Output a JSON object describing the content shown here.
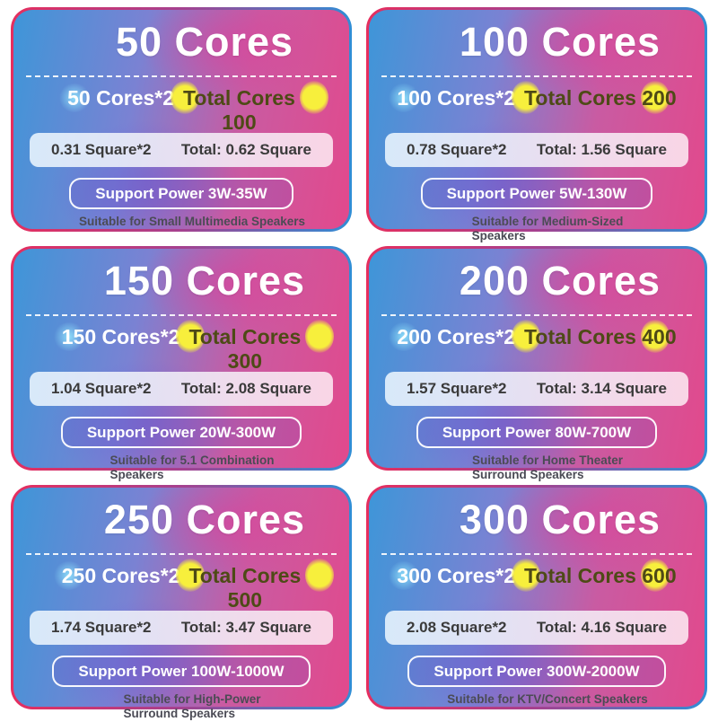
{
  "colors": {
    "page_background": "#ffffff",
    "card_gradient_left": "#3e96d8",
    "card_gradient_right": "#e2498c",
    "border_gradient_left": "#e62e5e",
    "border_gradient_right": "#2f8ed6",
    "highlight_yellow": "#f7ef3c",
    "sparkle_cyan": "#96ebff",
    "title_text": "#ffffff",
    "total_cores_text": "#4e4a16",
    "spec_bar_text": "#3a3a3a",
    "suitable_text": "#4b4b55"
  },
  "cards": [
    {
      "title": "50 Cores",
      "cores_label": "50 Cores*2",
      "total_cores": "Total Cores\n100",
      "square_label": "0.31 Square*2",
      "total_square": "Total: 0.62 Square",
      "support_power": "Support Power 3W-35W",
      "suitable": "Suitable for Small Multimedia Speakers"
    },
    {
      "title": "100 Cores",
      "cores_label": "100 Cores*2",
      "total_cores": "Total Cores 200",
      "square_label": "0.78 Square*2",
      "total_square": "Total: 1.56 Square",
      "support_power": "Support Power 5W-130W",
      "suitable": "Suitable for Medium-Sized\nSpeakers"
    },
    {
      "title": "150 Cores",
      "cores_label": "150 Cores*2",
      "total_cores": "Total Cores\n300",
      "square_label": "1.04 Square*2",
      "total_square": "Total: 2.08 Square",
      "support_power": "Support Power 20W-300W",
      "suitable": "Suitable for 5.1 Combination\nSpeakers"
    },
    {
      "title": "200 Cores",
      "cores_label": "200 Cores*2",
      "total_cores": "Total Cores 400",
      "square_label": "1.57 Square*2",
      "total_square": "Total: 3.14 Square",
      "support_power": "Support Power 80W-700W",
      "suitable": "Suitable for Home Theater\nSurround Speakers"
    },
    {
      "title": "250 Cores",
      "cores_label": "250 Cores*2",
      "total_cores": "Total Cores\n500",
      "square_label": "1.74 Square*2",
      "total_square": "Total: 3.47 Square",
      "support_power": "Support Power 100W-1000W",
      "suitable": "Suitable for High-Power\nSurround Speakers"
    },
    {
      "title": "300 Cores",
      "cores_label": "300 Cores*2",
      "total_cores": "Total Cores 600",
      "square_label": "2.08 Square*2",
      "total_square": "Total: 4.16 Square",
      "support_power": "Support Power 300W-2000W",
      "suitable": "Suitable for KTV/Concert Speakers"
    }
  ]
}
